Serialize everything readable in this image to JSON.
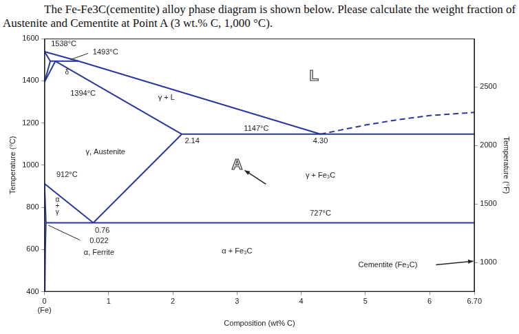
{
  "chart_data": {
    "type": "line",
    "title": "The Fe-Fe3C(cementite) alloy phase diagram is shown below. Please calculate the weight fraction of Austenite and Cementite at Point A (3 wt.% C, 1,000 °C).",
    "xlabel": "Composition (wt% C)",
    "ylabel": "Temperature (°C)",
    "y2label": "Temperature (°F)",
    "color": "#2a35a0",
    "grid": false,
    "xlim": [
      0,
      6.7
    ],
    "xticks": [
      0,
      1,
      2,
      3,
      4,
      5,
      6,
      {
        "value": 6.7,
        "label": "6.70"
      }
    ],
    "ylim": [
      400,
      1600
    ],
    "yticks": [
      400,
      600,
      800,
      1000,
      1200,
      1400,
      1600
    ],
    "y2lim": [
      752,
      2912
    ],
    "y2ticks": [
      1000,
      1500,
      2000,
      2500
    ],
    "x_notes": [
      {
        "text": "(Fe)",
        "x": 0
      }
    ],
    "series": [
      {
        "x": [
          0,
          0.53,
          4.3
        ],
        "values": [
          1538,
          1493,
          1147
        ],
        "line_style": "solid"
      },
      {
        "x": [
          4.3,
          5.0,
          5.5,
          6.0,
          6.7
        ],
        "values": [
          1147,
          1190,
          1215,
          1235,
          1250
        ],
        "line_style": "dashed"
      },
      {
        "x": [
          0,
          0.09
        ],
        "values": [
          1538,
          1493
        ],
        "line_style": "solid"
      },
      {
        "x": [
          0.09,
          0.53
        ],
        "values": [
          1493,
          1493
        ],
        "line_style": "solid"
      },
      {
        "x": [
          0.17,
          2.14
        ],
        "values": [
          1493,
          1147
        ],
        "line_style": "solid"
      },
      {
        "x": [
          0,
          0.09
        ],
        "values": [
          1394,
          1493
        ],
        "line_style": "solid"
      },
      {
        "x": [
          0,
          0.17
        ],
        "values": [
          1394,
          1493
        ],
        "line_style": "solid"
      },
      {
        "x": [
          2.14,
          6.7
        ],
        "values": [
          1147,
          1147
        ],
        "line_style": "solid"
      },
      {
        "x": [
          2.14,
          0.76
        ],
        "values": [
          1147,
          727
        ],
        "line_style": "solid"
      },
      {
        "x": [
          0,
          0.76
        ],
        "values": [
          912,
          727
        ],
        "line_style": "solid"
      },
      {
        "x": [
          0,
          0.022
        ],
        "values": [
          912,
          727
        ],
        "line_style": "solid"
      },
      {
        "x": [
          0.022,
          6.7
        ],
        "values": [
          727,
          727
        ],
        "line_style": "solid"
      },
      {
        "x": [
          0.022,
          0.012,
          0.005
        ],
        "values": [
          727,
          600,
          400
        ],
        "line_style": "solid"
      }
    ],
    "annotations": [
      {
        "text": "1538°C",
        "x": 0.3,
        "y": 1575
      },
      {
        "text": "1493°C",
        "x": 0.95,
        "y": 1535,
        "pointer": {
          "from": [
            0.68,
            1530
          ],
          "to": [
            0.4,
            1500
          ]
        }
      },
      {
        "text": "δ",
        "x": 0.35,
        "y": 1440
      },
      {
        "text": "1394°C",
        "x": 0.6,
        "y": 1340
      },
      {
        "text": "γ + L",
        "x": 1.9,
        "y": 1320
      },
      {
        "text": "L",
        "x": 4.2,
        "y": 1420
      },
      {
        "text": "1147°C",
        "x": 3.3,
        "y": 1172
      },
      {
        "text": "2.14",
        "x": 2.3,
        "y": 1115
      },
      {
        "text": "4.30",
        "x": 4.3,
        "y": 1115
      },
      {
        "text": "γ, Austenite",
        "x": 0.95,
        "y": 1060
      },
      {
        "text": "912°C",
        "x": 0.35,
        "y": 955
      },
      {
        "text": "γ + Fe₃C",
        "x": 4.3,
        "y": 950
      },
      {
        "text": "727°C",
        "x": 4.3,
        "y": 772
      },
      {
        "text": "α",
        "x": 0.2,
        "y": 835
      },
      {
        "text": "+",
        "x": 0.2,
        "y": 805
      },
      {
        "text": "γ",
        "x": 0.2,
        "y": 775
      },
      {
        "text": "0.76",
        "x": 0.9,
        "y": 690
      },
      {
        "text": "0.022",
        "x": 0.85,
        "y": 640,
        "pointer": {
          "from": [
            0.55,
            645
          ],
          "to": [
            0.06,
            715
          ]
        }
      },
      {
        "text": "α, Ferrite",
        "x": 0.85,
        "y": 585
      },
      {
        "text": "α + Fe₃C",
        "x": 3,
        "y": 590
      },
      {
        "text": "Cementite (Fe₃C)",
        "x": 5.35,
        "y": 525,
        "arrow": {
          "from": [
            6.1,
            528
          ],
          "to": [
            6.68,
            545
          ]
        }
      },
      {
        "text": "A",
        "x": 3,
        "y": 1000,
        "arrow": {
          "from": [
            3.45,
            910
          ],
          "to": [
            3.12,
            975
          ]
        }
      }
    ]
  }
}
